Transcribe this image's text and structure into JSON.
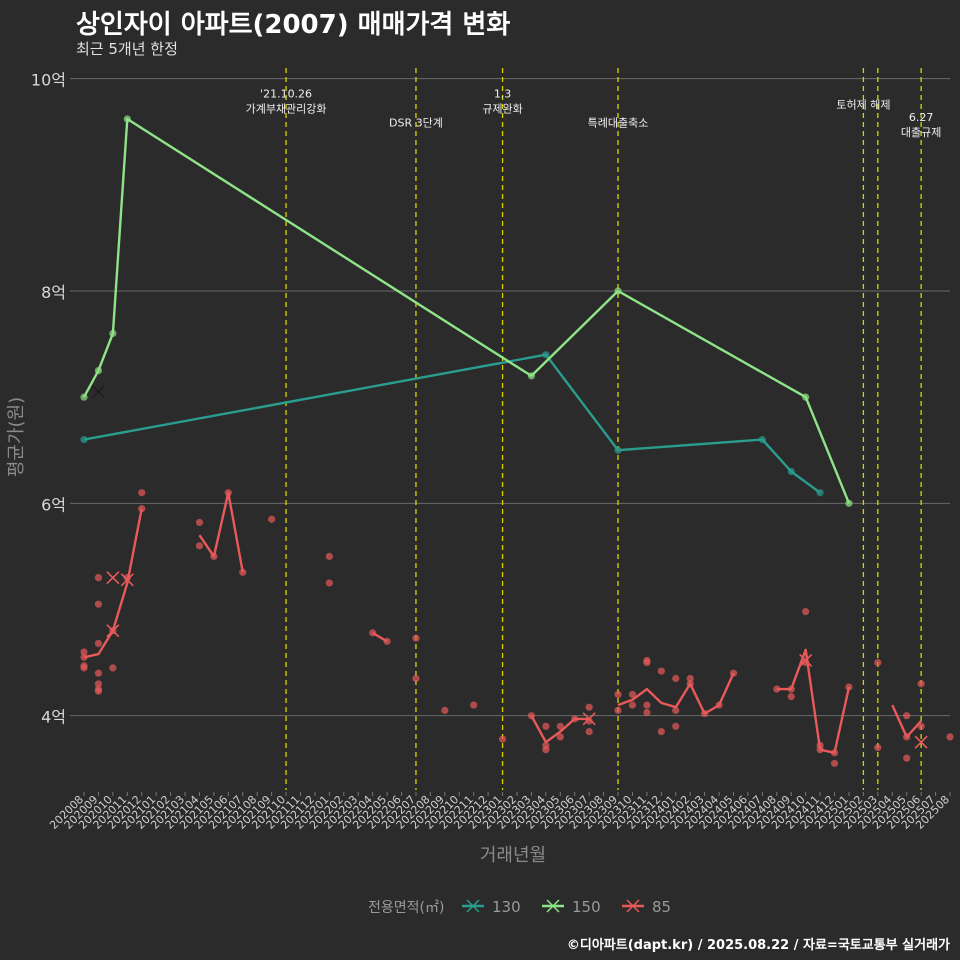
{
  "chart_data": {
    "type": "line",
    "title": "상인자이 아파트(2007) 매매가격 변화",
    "subtitle": "최근 5개년 한정",
    "xlabel": "거래년월",
    "ylabel": "평균가(원)",
    "caption": "©디아파트(dapt.kr) / 2025.08.22 / 자료=국토교통부 실거래가",
    "legend_title": "전용면적(㎡)",
    "legend_position": "bottom",
    "grid": true,
    "ylim": [
      3.3,
      10.1
    ],
    "yticks": [
      4,
      6,
      8,
      10
    ],
    "ytick_labels": [
      "4억",
      "6억",
      "8억",
      "10억"
    ],
    "x": [
      "202008",
      "202009",
      "202010",
      "202011",
      "202012",
      "202101",
      "202102",
      "202103",
      "202104",
      "202105",
      "202106",
      "202107",
      "202108",
      "202109",
      "202110",
      "202111",
      "202112",
      "202201",
      "202202",
      "202203",
      "202204",
      "202205",
      "202206",
      "202207",
      "202208",
      "202209",
      "202210",
      "202211",
      "202212",
      "202301",
      "202302",
      "202303",
      "202304",
      "202305",
      "202306",
      "202307",
      "202308",
      "202309",
      "202310",
      "202311",
      "202312",
      "202401",
      "202402",
      "202403",
      "202404",
      "202405",
      "202406",
      "202407",
      "202408",
      "202409",
      "202410",
      "202411",
      "202412",
      "202501",
      "202502",
      "202503",
      "202504",
      "202505",
      "202506",
      "202507",
      "202508"
    ],
    "series": [
      {
        "name": "130",
        "color": "#2a9d8f",
        "line": [
          [
            0,
            6.6
          ],
          [
            32,
            7.4
          ],
          [
            37,
            6.5
          ],
          [
            47,
            6.6
          ],
          [
            49,
            6.3
          ],
          [
            51,
            6.1
          ]
        ],
        "points": [
          [
            0,
            6.6
          ],
          [
            32,
            7.4
          ],
          [
            37,
            6.5
          ],
          [
            47,
            6.6
          ],
          [
            49,
            6.3
          ],
          [
            51,
            6.1
          ]
        ],
        "marks": []
      },
      {
        "name": "150",
        "color": "#8fe388",
        "line": [
          [
            0,
            7.0
          ],
          [
            1,
            7.25
          ],
          [
            2,
            7.6
          ],
          [
            3,
            9.62
          ],
          [
            31,
            7.2
          ],
          [
            37,
            8.0
          ],
          [
            50,
            7.0
          ],
          [
            53,
            6.0
          ]
        ],
        "points": [
          [
            0,
            7.0
          ],
          [
            1,
            7.25
          ],
          [
            2,
            7.6
          ],
          [
            3,
            9.62
          ],
          [
            31,
            7.2
          ],
          [
            37,
            8.0
          ],
          [
            50,
            7.0
          ],
          [
            53,
            6.0
          ]
        ],
        "marks": [
          [
            1,
            7.05
          ]
        ]
      },
      {
        "name": "85",
        "color": "#e85a5a",
        "line": [
          [
            0,
            4.55
          ],
          [
            1,
            4.58
          ],
          [
            2,
            4.8
          ],
          [
            3,
            5.25
          ],
          [
            4,
            5.95
          ],
          null,
          [
            8,
            5.7
          ],
          [
            9,
            5.5
          ],
          [
            10,
            6.1
          ],
          [
            11,
            5.35
          ],
          null,
          [
            20,
            4.78
          ],
          [
            21,
            4.7
          ],
          null,
          [
            31,
            4.0
          ],
          [
            32,
            3.75
          ],
          [
            33,
            3.85
          ],
          [
            34,
            3.97
          ],
          [
            35,
            3.97
          ],
          null,
          [
            37,
            4.1
          ],
          [
            38,
            4.15
          ],
          [
            39,
            4.25
          ],
          [
            40,
            4.12
          ],
          [
            41,
            4.08
          ],
          [
            42,
            4.3
          ],
          [
            43,
            4.02
          ],
          [
            44,
            4.1
          ],
          [
            45,
            4.4
          ],
          null,
          [
            48,
            4.25
          ],
          [
            49,
            4.25
          ],
          [
            50,
            4.62
          ],
          [
            51,
            3.68
          ],
          [
            52,
            3.65
          ],
          [
            53,
            4.27
          ],
          null,
          [
            56,
            4.1
          ],
          [
            57,
            3.8
          ],
          [
            58,
            3.95
          ]
        ],
        "points": [
          [
            0,
            4.6
          ],
          [
            0,
            4.55
          ],
          [
            0,
            4.47
          ],
          [
            0,
            4.45
          ],
          [
            1,
            5.3
          ],
          [
            1,
            5.05
          ],
          [
            1,
            4.68
          ],
          [
            1,
            4.4
          ],
          [
            1,
            4.3
          ],
          [
            1,
            4.25
          ],
          [
            1,
            4.23
          ],
          [
            2,
            4.8
          ],
          [
            2,
            4.45
          ],
          [
            3,
            5.3
          ],
          [
            4,
            6.1
          ],
          [
            4,
            5.95
          ],
          [
            8,
            5.82
          ],
          [
            8,
            5.6
          ],
          [
            9,
            5.5
          ],
          [
            10,
            6.1
          ],
          [
            11,
            5.35
          ],
          [
            13,
            5.85
          ],
          [
            17,
            5.5
          ],
          [
            17,
            5.25
          ],
          [
            20,
            4.78
          ],
          [
            21,
            4.7
          ],
          [
            23,
            4.73
          ],
          [
            23,
            4.35
          ],
          [
            25,
            4.05
          ],
          [
            27,
            4.1
          ],
          [
            29,
            3.78
          ],
          [
            31,
            4.0
          ],
          [
            32,
            3.9
          ],
          [
            32,
            3.72
          ],
          [
            32,
            3.68
          ],
          [
            33,
            3.9
          ],
          [
            33,
            3.8
          ],
          [
            34,
            3.97
          ],
          [
            35,
            4.08
          ],
          [
            35,
            3.95
          ],
          [
            35,
            3.85
          ],
          [
            37,
            4.2
          ],
          [
            37,
            4.05
          ],
          [
            38,
            4.2
          ],
          [
            38,
            4.1
          ],
          [
            39,
            4.5
          ],
          [
            39,
            4.52
          ],
          [
            39,
            4.1
          ],
          [
            39,
            4.03
          ],
          [
            40,
            4.42
          ],
          [
            40,
            3.85
          ],
          [
            41,
            4.35
          ],
          [
            41,
            4.05
          ],
          [
            41,
            3.9
          ],
          [
            42,
            4.35
          ],
          [
            42,
            4.3
          ],
          [
            43,
            4.02
          ],
          [
            44,
            4.1
          ],
          [
            45,
            4.4
          ],
          [
            48,
            4.25
          ],
          [
            49,
            4.25
          ],
          [
            49,
            4.18
          ],
          [
            50,
            4.98
          ],
          [
            50,
            4.5
          ],
          [
            51,
            3.72
          ],
          [
            51,
            3.68
          ],
          [
            52,
            3.65
          ],
          [
            52,
            3.55
          ],
          [
            53,
            4.27
          ],
          [
            55,
            4.5
          ],
          [
            55,
            3.7
          ],
          [
            57,
            4.0
          ],
          [
            57,
            3.8
          ],
          [
            57,
            3.6
          ],
          [
            58,
            4.3
          ],
          [
            58,
            3.9
          ],
          [
            60,
            3.8
          ]
        ],
        "marks": [
          [
            2,
            5.3
          ],
          [
            2,
            4.8
          ],
          [
            3,
            5.28
          ],
          [
            35,
            3.97
          ],
          [
            50,
            4.52
          ],
          [
            58,
            3.75
          ]
        ]
      }
    ],
    "vlines": [
      {
        "x": 14.0,
        "label": "'21.10.26\n가계부채관리강화",
        "label_y": 9.82
      },
      {
        "x": 23.0,
        "label": "DSR 3단계",
        "label_y": 9.55
      },
      {
        "x": 29.0,
        "label": "1.3\n규제완화",
        "label_y": 9.82
      },
      {
        "x": 37.0,
        "label": "특례대출축소",
        "label_y": 9.55
      },
      {
        "x": 54.0,
        "label": "토허제 해제",
        "label_y": 9.72
      },
      {
        "x": 55.0,
        "label": "",
        "label_y": 0
      },
      {
        "x": 58.0,
        "label": "6.27\n대출규제",
        "label_y": 9.6
      }
    ]
  },
  "legend": [
    {
      "label": "130",
      "color": "#2a9d8f"
    },
    {
      "label": "150",
      "color": "#8fe388"
    },
    {
      "label": "85",
      "color": "#e85a5a"
    }
  ]
}
